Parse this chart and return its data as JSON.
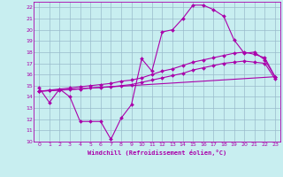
{
  "background_color": "#c8eef0",
  "grid_color": "#99bbcc",
  "line_color": "#aa00aa",
  "xlabel": "Windchill (Refroidissement éolien,°C)",
  "xlim": [
    -0.5,
    23.5
  ],
  "ylim": [
    10,
    22.5
  ],
  "yticks": [
    10,
    11,
    12,
    13,
    14,
    15,
    16,
    17,
    18,
    19,
    20,
    21,
    22
  ],
  "xticks": [
    0,
    1,
    2,
    3,
    4,
    5,
    6,
    7,
    8,
    9,
    10,
    11,
    12,
    13,
    14,
    15,
    16,
    17,
    18,
    19,
    20,
    21,
    22,
    23
  ],
  "series": [
    {
      "x": [
        0,
        1,
        2,
        3,
        4,
        5,
        6,
        7,
        8,
        9,
        10,
        11,
        12,
        13,
        14,
        15,
        16,
        17,
        18,
        19,
        20,
        21,
        22,
        23
      ],
      "y": [
        14.8,
        13.5,
        14.7,
        14.0,
        11.8,
        11.8,
        11.8,
        10.2,
        12.1,
        13.3,
        17.4,
        16.3,
        19.8,
        20.0,
        21.0,
        22.2,
        22.2,
        21.8,
        21.2,
        19.1,
        17.9,
        18.0,
        17.3,
        15.8
      ]
    },
    {
      "x": [
        0,
        1,
        2,
        3,
        4,
        5,
        6,
        7,
        8,
        9,
        10,
        11,
        12,
        13,
        14,
        15,
        16,
        17,
        18,
        19,
        20,
        21,
        22,
        23
      ],
      "y": [
        14.5,
        14.6,
        14.7,
        14.8,
        14.9,
        15.0,
        15.1,
        15.2,
        15.4,
        15.5,
        15.7,
        16.0,
        16.3,
        16.5,
        16.8,
        17.1,
        17.3,
        17.5,
        17.7,
        17.9,
        18.0,
        17.8,
        17.5,
        15.8
      ]
    },
    {
      "x": [
        0,
        1,
        2,
        3,
        4,
        5,
        6,
        7,
        8,
        9,
        10,
        11,
        12,
        13,
        14,
        15,
        16,
        17,
        18,
        19,
        20,
        21,
        22,
        23
      ],
      "y": [
        14.5,
        14.55,
        14.6,
        14.65,
        14.7,
        14.8,
        14.85,
        14.9,
        15.0,
        15.1,
        15.3,
        15.5,
        15.7,
        15.9,
        16.1,
        16.4,
        16.6,
        16.8,
        17.0,
        17.1,
        17.2,
        17.1,
        17.0,
        15.6
      ]
    },
    {
      "x": [
        0,
        23
      ],
      "y": [
        14.5,
        15.8
      ]
    }
  ]
}
